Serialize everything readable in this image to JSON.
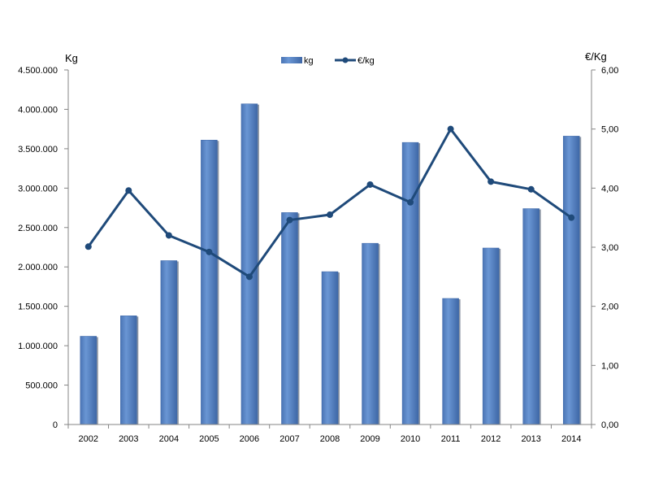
{
  "chart_data": {
    "type": "bar",
    "categories": [
      "2002",
      "2003",
      "2004",
      "2005",
      "2006",
      "2007",
      "2008",
      "2009",
      "2010",
      "2011",
      "2012",
      "2013",
      "2014"
    ],
    "series": [
      {
        "name": "kg",
        "type": "bar",
        "axis": "left",
        "values": [
          1120000,
          1380000,
          2080000,
          3610000,
          4070000,
          2690000,
          1940000,
          2300000,
          3580000,
          1600000,
          2240000,
          2740000,
          3660000
        ]
      },
      {
        "name": "€/kg",
        "type": "line",
        "axis": "right",
        "values": [
          3.01,
          3.96,
          3.2,
          2.92,
          2.5,
          3.46,
          3.55,
          4.06,
          3.76,
          5.0,
          4.11,
          3.98,
          3.5
        ]
      }
    ],
    "y_left": {
      "label": "Kg",
      "ylim": [
        0,
        4500000
      ],
      "ticks": [
        "0",
        "500.000",
        "1.000.000",
        "1.500.000",
        "2.000.000",
        "2.500.000",
        "3.000.000",
        "3.500.000",
        "4.000.000",
        "4.500.000"
      ]
    },
    "y_right": {
      "label": "€/Kg",
      "ylim": [
        0,
        6
      ],
      "ticks": [
        "0,00",
        "1,00",
        "2,00",
        "3,00",
        "4,00",
        "5,00",
        "6,00"
      ]
    },
    "legend": {
      "placement": "top-center",
      "items": [
        "kg",
        "€/kg"
      ]
    },
    "grid": false,
    "colors": {
      "bar": "#5b87c6",
      "bar_dark": "#3f68a8",
      "line": "#1f4a7a",
      "axis": "#868686"
    }
  }
}
